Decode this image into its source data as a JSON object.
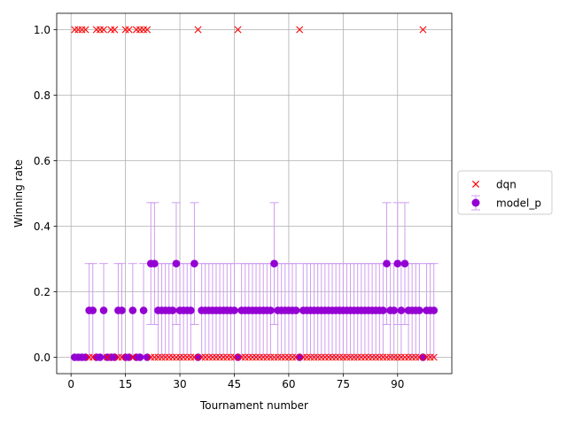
{
  "chart_data": {
    "type": "scatter",
    "title": "",
    "xlabel": "Tournament number",
    "ylabel": "Winning rate",
    "xlim": [
      -3.95,
      104.95
    ],
    "ylim": [
      -0.05,
      1.05
    ],
    "xticks": [
      0,
      15,
      30,
      45,
      60,
      75,
      90
    ],
    "yticks": [
      0.0,
      0.2,
      0.4,
      0.6,
      0.8,
      1.0
    ],
    "ytick_labels": [
      "0.0",
      "0.2",
      "0.4",
      "0.6",
      "0.8",
      "1.0"
    ],
    "grid": true,
    "legend": {
      "position": "right",
      "entries": [
        "dqn",
        "model_p"
      ]
    },
    "series": [
      {
        "name": "dqn",
        "marker": "x",
        "color": "#ff0000",
        "x": [
          1,
          2,
          3,
          4,
          5,
          6,
          7,
          8,
          9,
          10,
          11,
          12,
          13,
          14,
          15,
          16,
          17,
          18,
          19,
          20,
          21,
          22,
          23,
          24,
          25,
          26,
          27,
          28,
          29,
          30,
          31,
          32,
          33,
          34,
          35,
          36,
          37,
          38,
          39,
          40,
          41,
          42,
          43,
          44,
          45,
          46,
          47,
          48,
          49,
          50,
          51,
          52,
          53,
          54,
          55,
          56,
          57,
          58,
          59,
          60,
          61,
          62,
          63,
          64,
          65,
          66,
          67,
          68,
          69,
          70,
          71,
          72,
          73,
          74,
          75,
          76,
          77,
          78,
          79,
          80,
          81,
          82,
          83,
          84,
          85,
          86,
          87,
          88,
          89,
          90,
          91,
          92,
          93,
          94,
          95,
          96,
          97,
          98,
          99,
          100
        ],
        "values": [
          1,
          1,
          1,
          1,
          0,
          0,
          1,
          1,
          1,
          0,
          1,
          1,
          0,
          0,
          1,
          1,
          0,
          1,
          1,
          1,
          1,
          0,
          0,
          0,
          0,
          0,
          0,
          0,
          0,
          0,
          0,
          0,
          0,
          0,
          1,
          0,
          0,
          0,
          0,
          0,
          0,
          0,
          0,
          0,
          0,
          1,
          0,
          0,
          0,
          0,
          0,
          0,
          0,
          0,
          0,
          0,
          0,
          0,
          0,
          0,
          0,
          0,
          1,
          0,
          0,
          0,
          0,
          0,
          0,
          0,
          0,
          0,
          0,
          0,
          0,
          0,
          0,
          0,
          0,
          0,
          0,
          0,
          0,
          0,
          0,
          0,
          0,
          0,
          0,
          0,
          0,
          0,
          0,
          0,
          0,
          0,
          1,
          0,
          0,
          0
        ]
      },
      {
        "name": "model_p",
        "marker": "o",
        "color": "#9400d3",
        "errorbar_color": "#cf9ef0",
        "x": [
          1,
          2,
          3,
          4,
          5,
          6,
          7,
          8,
          9,
          10,
          11,
          12,
          13,
          14,
          15,
          16,
          17,
          18,
          19,
          20,
          21,
          22,
          23,
          24,
          25,
          26,
          27,
          28,
          29,
          30,
          31,
          32,
          33,
          34,
          35,
          36,
          37,
          38,
          39,
          40,
          41,
          42,
          43,
          44,
          45,
          46,
          47,
          48,
          49,
          50,
          51,
          52,
          53,
          54,
          55,
          56,
          57,
          58,
          59,
          60,
          61,
          62,
          63,
          64,
          65,
          66,
          67,
          68,
          69,
          70,
          71,
          72,
          73,
          74,
          75,
          76,
          77,
          78,
          79,
          80,
          81,
          82,
          83,
          84,
          85,
          86,
          87,
          88,
          89,
          90,
          91,
          92,
          93,
          94,
          95,
          96,
          97,
          98,
          99,
          100
        ],
        "values": [
          0,
          0,
          0,
          0,
          0.143,
          0.143,
          0,
          0,
          0.143,
          0,
          0,
          0,
          0.143,
          0.143,
          0,
          0,
          0.143,
          0,
          0,
          0.143,
          0,
          0.286,
          0.286,
          0.143,
          0.143,
          0.143,
          0.143,
          0.143,
          0.286,
          0.143,
          0.143,
          0.143,
          0.143,
          0.286,
          0,
          0.143,
          0.143,
          0.143,
          0.143,
          0.143,
          0.143,
          0.143,
          0.143,
          0.143,
          0.143,
          0,
          0.143,
          0.143,
          0.143,
          0.143,
          0.143,
          0.143,
          0.143,
          0.143,
          0.143,
          0.286,
          0.143,
          0.143,
          0.143,
          0.143,
          0.143,
          0.143,
          0,
          0.143,
          0.143,
          0.143,
          0.143,
          0.143,
          0.143,
          0.143,
          0.143,
          0.143,
          0.143,
          0.143,
          0.143,
          0.143,
          0.143,
          0.143,
          0.143,
          0.143,
          0.143,
          0.143,
          0.143,
          0.143,
          0.143,
          0.143,
          0.286,
          0.143,
          0.143,
          0.286,
          0.143,
          0.286,
          0.143,
          0.143,
          0.143,
          0.143,
          0,
          0.143,
          0.143,
          0.143
        ],
        "err_low": [
          0,
          0,
          0,
          0,
          0.143,
          0.143,
          0,
          0,
          0.143,
          0,
          0,
          0,
          0.143,
          0.143,
          0,
          0,
          0.143,
          0,
          0,
          0.143,
          0,
          0.186,
          0.186,
          0.143,
          0.143,
          0.143,
          0.143,
          0.143,
          0.186,
          0.143,
          0.143,
          0.143,
          0.143,
          0.186,
          0,
          0.143,
          0.143,
          0.143,
          0.143,
          0.143,
          0.143,
          0.143,
          0.143,
          0.143,
          0.143,
          0,
          0.143,
          0.143,
          0.143,
          0.143,
          0.143,
          0.143,
          0.143,
          0.143,
          0.143,
          0.186,
          0.143,
          0.143,
          0.143,
          0.143,
          0.143,
          0.143,
          0,
          0.143,
          0.143,
          0.143,
          0.143,
          0.143,
          0.143,
          0.143,
          0.143,
          0.143,
          0.143,
          0.143,
          0.143,
          0.143,
          0.143,
          0.143,
          0.143,
          0.143,
          0.143,
          0.143,
          0.143,
          0.143,
          0.143,
          0.143,
          0.186,
          0.143,
          0.143,
          0.186,
          0.143,
          0.186,
          0.143,
          0.143,
          0.143,
          0.143,
          0,
          0.143,
          0.143,
          0.143
        ],
        "err_high": [
          0,
          0,
          0,
          0,
          0.143,
          0.143,
          0,
          0,
          0.143,
          0,
          0,
          0,
          0.143,
          0.143,
          0,
          0,
          0.143,
          0,
          0,
          0.143,
          0,
          0.186,
          0.186,
          0.143,
          0.143,
          0.143,
          0.143,
          0.143,
          0.186,
          0.143,
          0.143,
          0.143,
          0.143,
          0.186,
          0,
          0.143,
          0.143,
          0.143,
          0.143,
          0.143,
          0.143,
          0.143,
          0.143,
          0.143,
          0.143,
          0,
          0.143,
          0.143,
          0.143,
          0.143,
          0.143,
          0.143,
          0.143,
          0.143,
          0.143,
          0.186,
          0.143,
          0.143,
          0.143,
          0.143,
          0.143,
          0.143,
          0,
          0.143,
          0.143,
          0.143,
          0.143,
          0.143,
          0.143,
          0.143,
          0.143,
          0.143,
          0.143,
          0.143,
          0.143,
          0.143,
          0.143,
          0.143,
          0.143,
          0.143,
          0.143,
          0.143,
          0.143,
          0.143,
          0.143,
          0.143,
          0.186,
          0.143,
          0.143,
          0.186,
          0.143,
          0.186,
          0.143,
          0.143,
          0.143,
          0.143,
          0,
          0.143,
          0.143,
          0.143
        ]
      }
    ]
  }
}
